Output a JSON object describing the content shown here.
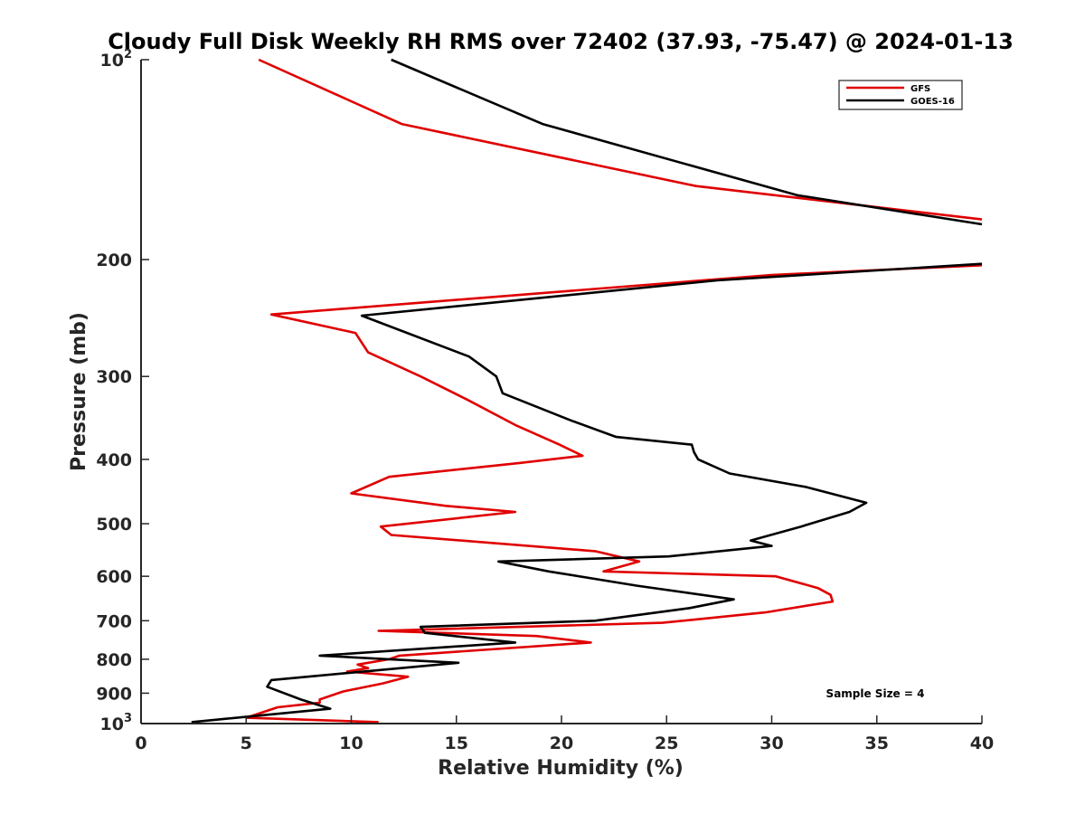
{
  "chart_data": {
    "type": "line",
    "title": "Cloudy Full Disk Weekly RH RMS over 72402 (37.93, -75.47) @ 2024-01-13",
    "xlabel": "Relative Humidity (%)",
    "ylabel": "Pressure (mb)",
    "xlim": [
      0,
      40
    ],
    "ylim": [
      1000,
      100
    ],
    "yscale": "log",
    "grid": false,
    "legend_position": "top-right",
    "x_ticks": [
      {
        "value": 0,
        "label": "0"
      },
      {
        "value": 5,
        "label": "5"
      },
      {
        "value": 10,
        "label": "10"
      },
      {
        "value": 15,
        "label": "15"
      },
      {
        "value": 20,
        "label": "20"
      },
      {
        "value": 25,
        "label": "25"
      },
      {
        "value": 30,
        "label": "30"
      },
      {
        "value": 35,
        "label": "35"
      },
      {
        "value": 40,
        "label": "40"
      }
    ],
    "y_ticks": [
      {
        "value": 100,
        "base": "10",
        "exp": "2"
      },
      {
        "value": 200,
        "label": "200"
      },
      {
        "value": 300,
        "label": "300"
      },
      {
        "value": 400,
        "label": "400"
      },
      {
        "value": 500,
        "label": "500"
      },
      {
        "value": 600,
        "label": "600"
      },
      {
        "value": 700,
        "label": "700"
      },
      {
        "value": 800,
        "label": "800"
      },
      {
        "value": 900,
        "label": "900"
      },
      {
        "value": 1000,
        "base": "10",
        "exp": "3"
      }
    ],
    "annotation": "Sample Size = 4",
    "series": [
      {
        "name": "GFS",
        "color": "#e00000",
        "points": [
          [
            5.6,
            100
          ],
          [
            12.4,
            125
          ],
          [
            26.4,
            155
          ],
          [
            40,
            174
          ],
          null,
          [
            40,
            204
          ],
          [
            30,
            211
          ],
          [
            6.2,
            242
          ],
          [
            10.2,
            258
          ],
          [
            10.8,
            276
          ],
          [
            13.3,
            300
          ],
          [
            15.5,
            325
          ],
          [
            17.8,
            355
          ],
          [
            19.9,
            380
          ],
          [
            21.0,
            395
          ],
          [
            18.0,
            405
          ],
          [
            11.8,
            425
          ],
          [
            10.0,
            450
          ],
          [
            14.5,
            470
          ],
          [
            17.8,
            480
          ],
          [
            11.4,
            505
          ],
          [
            11.9,
            520
          ],
          [
            21.6,
            550
          ],
          [
            23.7,
            570
          ],
          [
            22.0,
            590
          ],
          [
            30.2,
            600
          ],
          [
            32.2,
            625
          ],
          [
            32.8,
            640
          ],
          [
            32.9,
            655
          ],
          [
            29.7,
            680
          ],
          [
            24.8,
            705
          ],
          [
            11.3,
            725
          ],
          [
            18.8,
            738
          ],
          [
            21.4,
            755
          ],
          [
            12.3,
            790
          ],
          [
            11.8,
            800
          ],
          [
            10.3,
            815
          ],
          [
            10.8,
            825
          ],
          [
            9.8,
            835
          ],
          [
            12.7,
            850
          ],
          [
            11.5,
            870
          ],
          [
            9.6,
            895
          ],
          [
            8.5,
            920
          ],
          [
            8.5,
            930
          ],
          [
            6.5,
            945
          ],
          [
            5.0,
            980
          ],
          [
            11.3,
            995
          ]
        ]
      },
      {
        "name": "GOES-16",
        "color": "#000000",
        "points": [
          [
            11.9,
            100
          ],
          [
            19.1,
            125
          ],
          [
            31.2,
            160
          ],
          [
            40,
            177
          ],
          null,
          [
            40,
            203
          ],
          [
            27.4,
            215
          ],
          [
            10.5,
            243
          ],
          [
            15.6,
            280
          ],
          [
            16.9,
            300
          ],
          [
            17.2,
            318
          ],
          [
            20.5,
            350
          ],
          [
            22.6,
            370
          ],
          [
            26.2,
            380
          ],
          [
            26.3,
            390
          ],
          [
            26.5,
            400
          ],
          [
            28.0,
            420
          ],
          [
            31.6,
            440
          ],
          [
            34.5,
            465
          ],
          [
            33.7,
            480
          ],
          [
            31.4,
            505
          ],
          [
            29.0,
            530
          ],
          [
            30.0,
            540
          ],
          [
            25.1,
            560
          ],
          [
            17.0,
            570
          ],
          [
            19.4,
            590
          ],
          [
            23.6,
            620
          ],
          [
            28.2,
            650
          ],
          [
            26.1,
            670
          ],
          [
            21.6,
            700
          ],
          [
            13.3,
            715
          ],
          [
            13.5,
            730
          ],
          [
            17.8,
            755
          ],
          [
            8.5,
            790
          ],
          [
            11.8,
            800
          ],
          [
            15.1,
            810
          ],
          [
            6.2,
            860
          ],
          [
            6.0,
            880
          ],
          [
            7.6,
            920
          ],
          [
            9.0,
            950
          ],
          [
            2.4,
            995
          ]
        ]
      }
    ]
  }
}
